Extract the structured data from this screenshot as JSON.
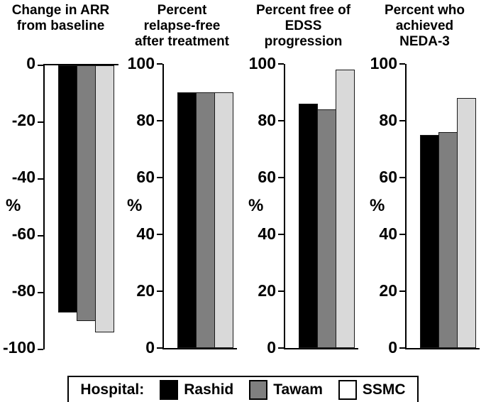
{
  "figure": {
    "background": "#ffffff",
    "axis_color": "#000000"
  },
  "series_colors": [
    "#000000",
    "#7f7f7f",
    "#d9d9d9"
  ],
  "legend": {
    "label": "Hospital:",
    "position": "bottom-center",
    "items": [
      {
        "name": "Rashid",
        "swatch_color": "#000000"
      },
      {
        "name": "Tawam",
        "swatch_color": "#7f7f7f"
      },
      {
        "name": "SSMC",
        "swatch_color": "#ffffff"
      }
    ]
  },
  "chart_data": [
    {
      "type": "bar",
      "title": "Change in ARR\nfrom baseline",
      "xlabel": "",
      "ylabel": "%",
      "categories": [
        "Rashid",
        "Tawam",
        "SSMC"
      ],
      "values": [
        -87,
        -90,
        -94
      ],
      "ylim": [
        -100,
        0
      ],
      "yticks": [
        0,
        -20,
        -40,
        -60,
        -80,
        -100
      ],
      "ytick_labels": [
        "0",
        "-20",
        "-40",
        "-60",
        "-80",
        "-100"
      ],
      "baseline": "top",
      "grid": false
    },
    {
      "type": "bar",
      "title": "Percent\nrelapse-free\nafter treatment",
      "xlabel": "",
      "ylabel": "%",
      "categories": [
        "Rashid",
        "Tawam",
        "SSMC"
      ],
      "values": [
        90,
        90,
        90
      ],
      "ylim": [
        0,
        100
      ],
      "yticks": [
        100,
        80,
        60,
        40,
        20,
        0
      ],
      "ytick_labels": [
        "100",
        "80",
        "60",
        "40",
        "20",
        "0"
      ],
      "baseline": "bottom",
      "grid": false
    },
    {
      "type": "bar",
      "title": "Percent free of\nEDSS\nprogression",
      "xlabel": "",
      "ylabel": "%",
      "categories": [
        "Rashid",
        "Tawam",
        "SSMC"
      ],
      "values": [
        86,
        84,
        98
      ],
      "ylim": [
        0,
        100
      ],
      "yticks": [
        100,
        80,
        60,
        40,
        20,
        0
      ],
      "ytick_labels": [
        "100",
        "80",
        "60",
        "40",
        "20",
        "0"
      ],
      "baseline": "bottom",
      "grid": false
    },
    {
      "type": "bar",
      "title": "Percent who\nachieved\nNEDA-3",
      "xlabel": "",
      "ylabel": "%",
      "categories": [
        "Rashid",
        "Tawam",
        "SSMC"
      ],
      "values": [
        75,
        76,
        88
      ],
      "ylim": [
        0,
        100
      ],
      "yticks": [
        100,
        80,
        60,
        40,
        20,
        0
      ],
      "ytick_labels": [
        "100",
        "80",
        "60",
        "40",
        "20",
        "0"
      ],
      "baseline": "bottom",
      "grid": false
    }
  ]
}
